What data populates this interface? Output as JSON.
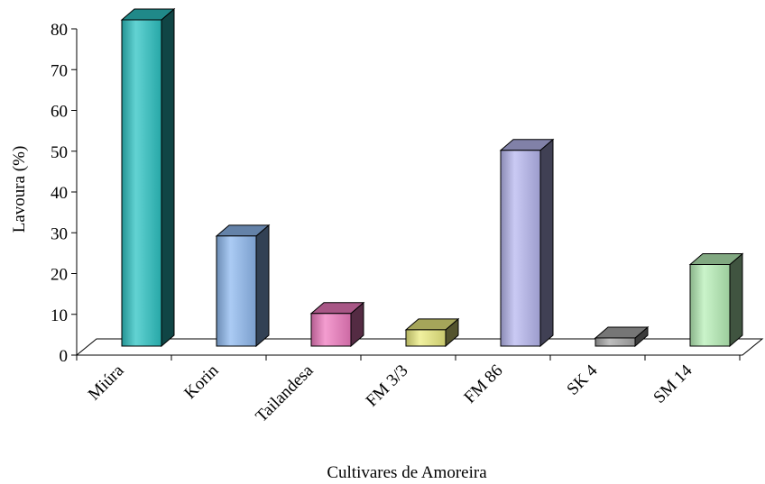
{
  "chart_data": {
    "type": "bar",
    "title": "",
    "xlabel": "Cultivares de Amoreira",
    "ylabel": "Lavoura (%)",
    "ylim": [
      0,
      80
    ],
    "yticks": [
      "0",
      "10",
      "20",
      "30",
      "40",
      "50",
      "60",
      "70",
      "80"
    ],
    "grid": false,
    "categories": [
      "Miúra",
      "Korin",
      "Tailandesa",
      "FM 3/3",
      "FM 86",
      "SK 4",
      "SM 14"
    ],
    "values": [
      80,
      27,
      8,
      4,
      48,
      2,
      20
    ],
    "colors": [
      "#2ec4c4",
      "#8fbaf0",
      "#f07cc0",
      "#ecec80",
      "#b8b8f0",
      "#a8a8a8",
      "#b8f0b8"
    ]
  }
}
